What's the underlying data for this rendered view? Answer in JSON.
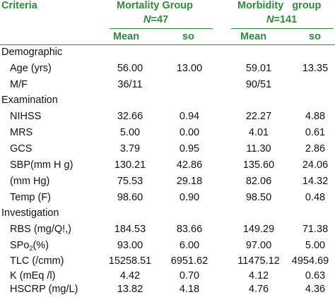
{
  "header": {
    "criteria": "Criteria",
    "mortality_title": "Mortality Group",
    "mortality_n_italic": "N",
    "mortality_n_value": "=47",
    "morbidity_title": "Morbidity   group",
    "morbidity_n_italic": "N",
    "morbidity_n_value": "=141",
    "mean": "Mean",
    "so": "so"
  },
  "sections": [
    {
      "title": "Demographic",
      "rows": [
        {
          "label": "Age (yrs)",
          "m_mean": "56.00",
          "m_so": "13.00",
          "b_mean": "59.01",
          "b_so": "13.35"
        },
        {
          "label": "M/F",
          "m_mean": "36/11",
          "m_so": "",
          "b_mean": "90/51",
          "b_so": ""
        }
      ]
    },
    {
      "title": "Examination",
      "rows": [
        {
          "label": "NIHSS",
          "m_mean": "32.66",
          "m_so": "0.94",
          "b_mean": "22.27",
          "b_so": "4.88"
        },
        {
          "label": "MRS",
          "m_mean": "5.00",
          "m_so": "0.00",
          "b_mean": "4.01",
          "b_so": "0.61"
        },
        {
          "label": "GCS",
          "m_mean": "3.79",
          "m_so": "0.95",
          "b_mean": "11.30",
          "b_so": "2.86"
        },
        {
          "label": "SBP(mm H g)",
          "m_mean": "130.21",
          "m_so": "42.86",
          "b_mean": "135.60",
          "b_so": "24.06"
        },
        {
          "label": "(mm Hg)",
          "m_mean": "75.53",
          "m_so": "29.18",
          "b_mean": "82.06",
          "b_so": "14.32"
        },
        {
          "label": "Temp (F)",
          "m_mean": "98.60",
          "m_so": "0.90",
          "b_mean": "98.50",
          "b_so": "0.48"
        }
      ]
    },
    {
      "title": "Investigation",
      "rows": [
        {
          "label": "RBS (mg/Q!,)",
          "m_mean": "184.53",
          "m_so": "83.66",
          "b_mean": "149.29",
          "b_so": "71.38"
        },
        {
          "label": "SPo",
          "label_sub": "2",
          "label_suffix": "(%)",
          "m_mean": "93.00",
          "m_so": "6.00",
          "b_mean": "97.00",
          "b_so": "5.00"
        },
        {
          "label": "TLC (/cmm)",
          "m_mean": "15258.51",
          "m_so": "6951.62",
          "b_mean": "11475.12",
          "b_so": "4954.69"
        },
        {
          "label": "K (mEq /l)",
          "m_mean": "4.42",
          "m_so": "0.70",
          "b_mean": "4.12",
          "b_so": "0.63"
        },
        {
          "label": "HSCRP (mg/L)",
          "m_mean": "13.82",
          "m_so": "4.18",
          "b_mean": "4.76",
          "b_so": "4.36"
        }
      ]
    }
  ],
  "colors": {
    "header_green": "#2e8b3a",
    "text": "#111111",
    "background": "#ffffff"
  }
}
